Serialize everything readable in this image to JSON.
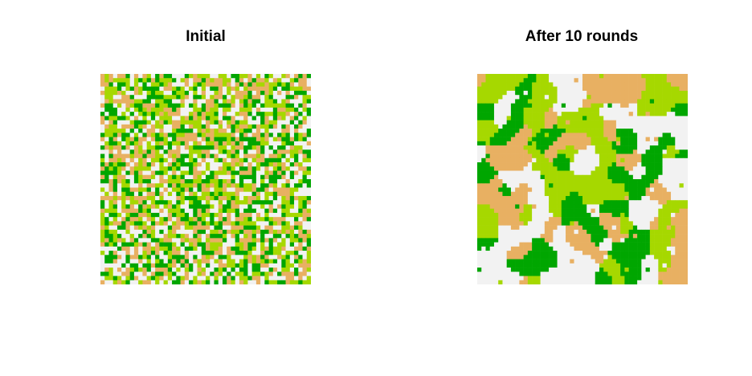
{
  "chart_data": [
    {
      "type": "heatmap",
      "title": "Initial",
      "rows": 50,
      "cols": 50,
      "state": "random"
    },
    {
      "type": "heatmap",
      "title": "After 10 rounds",
      "rows": 50,
      "cols": 50,
      "rounds": 10,
      "state": "clustered"
    }
  ],
  "palette": [
    "#00A600",
    "#A6D800",
    "#E8B062",
    "#F2F2F2"
  ]
}
